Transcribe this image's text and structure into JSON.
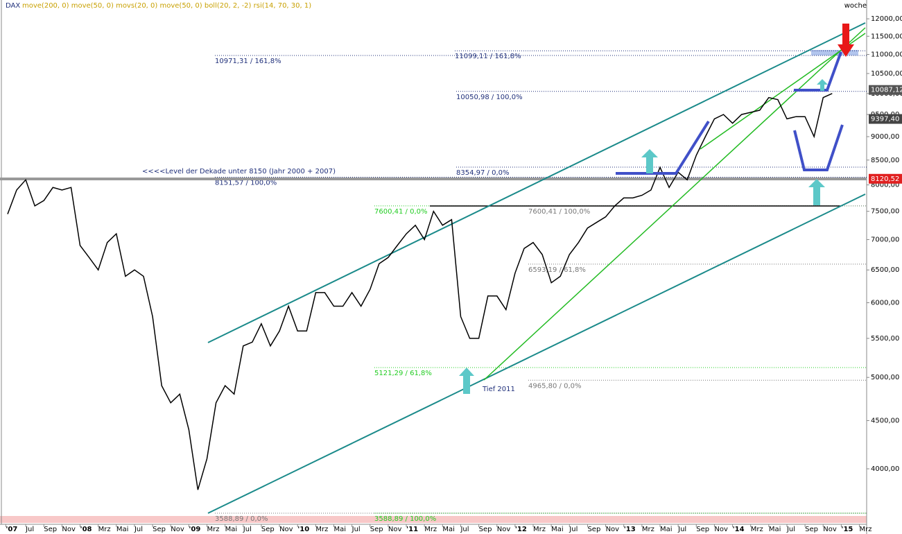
{
  "chart_data": {
    "type": "line",
    "title": "DAX",
    "subtitle": "move(200, 0) move(50, 0) movs(20, 0) move(50, 0) boll(20, 2, -2) rsi(14, 70, 30, 1)",
    "period": "woche",
    "log_scale": true,
    "x": [
      4,
      5,
      6,
      7,
      8,
      9,
      10,
      11,
      12,
      13,
      14,
      15,
      16,
      17,
      18,
      19,
      20,
      21,
      22,
      23,
      24,
      25,
      26,
      27,
      28,
      29,
      30,
      31,
      32,
      33,
      34,
      35,
      36,
      37,
      38,
      39,
      40,
      41,
      42,
      43,
      44,
      45,
      46,
      47,
      48,
      49,
      50,
      51,
      52,
      53,
      54,
      55,
      56,
      57,
      58,
      59,
      60,
      61,
      62,
      63,
      64,
      65,
      66,
      67,
      68,
      69,
      70,
      71,
      72,
      73,
      74,
      75,
      76,
      77,
      78,
      79,
      80,
      81,
      82,
      83,
      84,
      85,
      86,
      87,
      88,
      89,
      90,
      91,
      92,
      93,
      94,
      95
    ],
    "series": [
      {
        "name": "DAX",
        "color": "#000000",
        "values": [
          7450,
          7900,
          8100,
          7600,
          7700,
          7950,
          7900,
          7950,
          6900,
          6700,
          6500,
          6950,
          7100,
          6400,
          6500,
          6400,
          5800,
          4900,
          4700,
          4800,
          4400,
          3800,
          4100,
          4700,
          4900,
          4800,
          5400,
          5450,
          5700,
          5400,
          5600,
          5950,
          5600,
          5600,
          6150,
          6150,
          5950,
          5950,
          6150,
          5950,
          6200,
          6600,
          6700,
          6900,
          7100,
          7250,
          7000,
          7500,
          7250,
          7350,
          5800,
          5500,
          5500,
          6100,
          6100,
          5900,
          6450,
          6850,
          6950,
          6750,
          6300,
          6400,
          6750,
          6950,
          7200,
          7300,
          7400,
          7600,
          7750,
          7750,
          7800,
          7900,
          8350,
          7950,
          8250,
          8100,
          8600,
          9000,
          9400,
          9500,
          9300,
          9500,
          9550,
          9600,
          9900,
          9850,
          9400,
          9450,
          9450,
          9000,
          9900,
          10000
        ]
      }
    ],
    "xlim": [
      3.16,
      98.8
    ],
    "xticks": [
      {
        "value": 3.8,
        "label": "'07"
      },
      {
        "value": 6,
        "label": "Jul"
      },
      {
        "value": 8,
        "label": "Sep"
      },
      {
        "value": 10,
        "label": "Nov"
      },
      {
        "value": 12,
        "label": "'08"
      },
      {
        "value": 14,
        "label": "Mrz"
      },
      {
        "value": 16,
        "label": "Mai"
      },
      {
        "value": 18,
        "label": "Jul"
      },
      {
        "value": 20,
        "label": "Sep"
      },
      {
        "value": 22,
        "label": "Nov"
      },
      {
        "value": 24,
        "label": "'09"
      },
      {
        "value": 26,
        "label": "Mrz"
      },
      {
        "value": 28,
        "label": "Mai"
      },
      {
        "value": 30,
        "label": "Jul"
      },
      {
        "value": 32,
        "label": "Sep"
      },
      {
        "value": 34,
        "label": "Nov"
      },
      {
        "value": 36,
        "label": "'10"
      },
      {
        "value": 38,
        "label": "Mrz"
      },
      {
        "value": 40,
        "label": "Mai"
      },
      {
        "value": 42,
        "label": "Jul"
      },
      {
        "value": 44,
        "label": "Sep"
      },
      {
        "value": 46,
        "label": "Nov"
      },
      {
        "value": 48,
        "label": "'11"
      },
      {
        "value": 50,
        "label": "Mrz"
      },
      {
        "value": 52,
        "label": "Mai"
      },
      {
        "value": 54,
        "label": "Jul"
      },
      {
        "value": 56,
        "label": "Sep"
      },
      {
        "value": 58,
        "label": "Nov"
      },
      {
        "value": 60,
        "label": "'12"
      },
      {
        "value": 62,
        "label": "Mrz"
      },
      {
        "value": 64,
        "label": "Mai"
      },
      {
        "value": 66,
        "label": "Jul"
      },
      {
        "value": 68,
        "label": "Sep"
      },
      {
        "value": 70,
        "label": "Nov"
      },
      {
        "value": 72,
        "label": "'13"
      },
      {
        "value": 74,
        "label": "Mrz"
      },
      {
        "value": 76,
        "label": "Mai"
      },
      {
        "value": 78,
        "label": "Jul"
      },
      {
        "value": 80,
        "label": "Sep"
      },
      {
        "value": 82,
        "label": "Nov"
      },
      {
        "value": 84,
        "label": "'14"
      },
      {
        "value": 86,
        "label": "Mrz"
      },
      {
        "value": 88,
        "label": "Mai"
      },
      {
        "value": 90,
        "label": "Jul"
      },
      {
        "value": 92,
        "label": "Sep"
      },
      {
        "value": 94,
        "label": "Nov"
      },
      {
        "value": 96,
        "label": "'15"
      },
      {
        "value": 98,
        "label": "Mrz"
      }
    ],
    "ylim": [
      3529,
      12564
    ],
    "yticks": [
      {
        "value": 12000,
        "label": "12000,00"
      },
      {
        "value": 11500,
        "label": "11500,00"
      },
      {
        "value": 11000,
        "label": "11000,00"
      },
      {
        "value": 10500,
        "label": "10500,00"
      },
      {
        "value": 10000,
        "label": "10000,00"
      },
      {
        "value": 9500,
        "label": "9500,00"
      },
      {
        "value": 9000,
        "label": "9000,00"
      },
      {
        "value": 8500,
        "label": "8500,00"
      },
      {
        "value": 8000,
        "label": "8000,00"
      },
      {
        "value": 7500,
        "label": "7500,00"
      },
      {
        "value": 7000,
        "label": "7000,00"
      },
      {
        "value": 6500,
        "label": "6500,00"
      },
      {
        "value": 6000,
        "label": "6000,00"
      },
      {
        "value": 5500,
        "label": "5500,00"
      },
      {
        "value": 5000,
        "label": "5000,00"
      },
      {
        "value": 4500,
        "label": "4500,00"
      },
      {
        "value": 4000,
        "label": "4000,00"
      }
    ],
    "levels": [
      {
        "value": 10971.31,
        "label": "10971,31 / 161,8%",
        "color": "#1f2f7a"
      },
      {
        "value": 11099.11,
        "label": "11099,11 / 161,8%",
        "color": "#1f2f7a"
      },
      {
        "value": 10050.98,
        "label": "10050,98 / 100,0%",
        "color": "#1f2f7a"
      },
      {
        "value": 8354.97,
        "label": "8354,97 / 0,0%",
        "color": "#1f2f7a"
      },
      {
        "value": 8151.57,
        "label": "8151,57 / 100,0%",
        "color": "#1f2f7a"
      },
      {
        "value": 7600.41,
        "label": "7600,41 / 0,0%",
        "color": "#22cc22"
      },
      {
        "value": 7600.41,
        "label": "7600,41 / 100,0%",
        "color": "#777777"
      },
      {
        "value": 6593.19,
        "label": "6593,19 / 61,8%",
        "color": "#777777"
      },
      {
        "value": 5121.29,
        "label": "5121,29 / 61,8%",
        "color": "#22cc22"
      },
      {
        "value": 4965.8,
        "label": "4965,80 / 0,0%",
        "color": "#777777"
      },
      {
        "value": 3588.89,
        "label": "3588,89 / 0,0%",
        "color": "#777777"
      },
      {
        "value": 3588.89,
        "label": "3588,89 / 100,0%",
        "color": "#22cc22"
      }
    ],
    "price_tags": [
      {
        "value": 10087.12,
        "label": "10087,12",
        "color": "#555555"
      },
      {
        "value": 9397.4,
        "label": "9397,40",
        "color": "#444444"
      },
      {
        "value": 8120.52,
        "label": "8120,52",
        "color": "#e02020"
      }
    ],
    "annotations": [
      "<<<<Level der Dekade unter 8150  (Jahr 2000 + 2007)",
      "Tief 2011"
    ]
  }
}
